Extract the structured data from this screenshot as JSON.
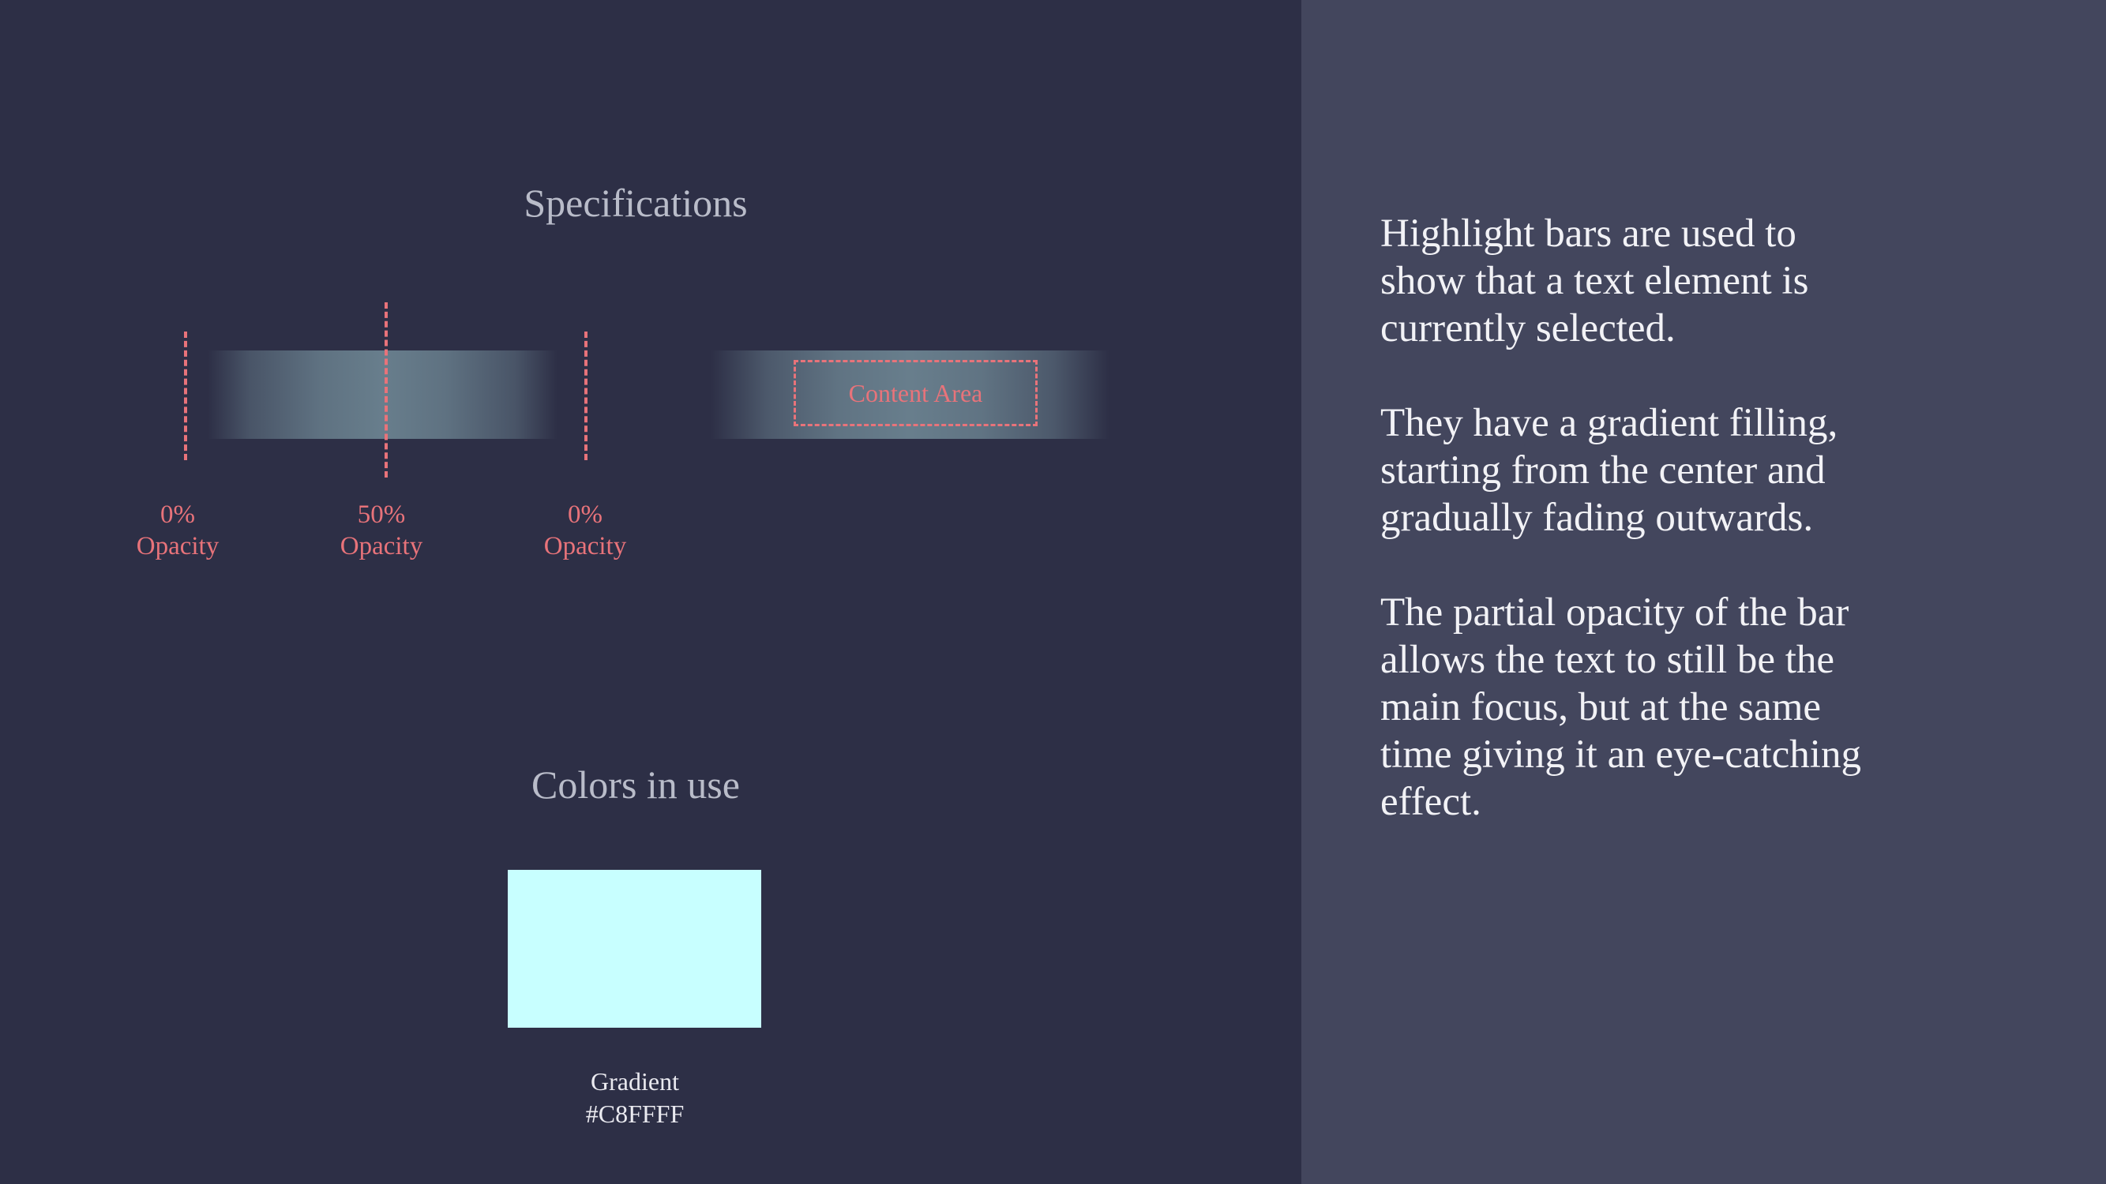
{
  "specifications": {
    "title": "Specifications",
    "guides": [
      {
        "value": "0%",
        "label": "Opacity"
      },
      {
        "value": "50%",
        "label": "Opacity"
      },
      {
        "value": "0%",
        "label": "Opacity"
      }
    ],
    "content_area_label": "Content Area"
  },
  "colors": {
    "title": "Colors in use",
    "swatch": {
      "name": "Gradient",
      "hex": "#C8FFFF",
      "color": "#c8ffff"
    }
  },
  "description": {
    "paragraphs": [
      "Highlight bars are used to show that a text element is currently selected.",
      "They have a gradient filling, starting from the center and gradually fading outwards.",
      "The partial opacity of the bar allows the text to still be the main focus, but at the same time giving it an eye-catching effect."
    ]
  },
  "palette": {
    "background_left": "#2d2f46",
    "background_right": "#43465d",
    "accent": "#e8737a",
    "heading": "#b9bcc9"
  }
}
